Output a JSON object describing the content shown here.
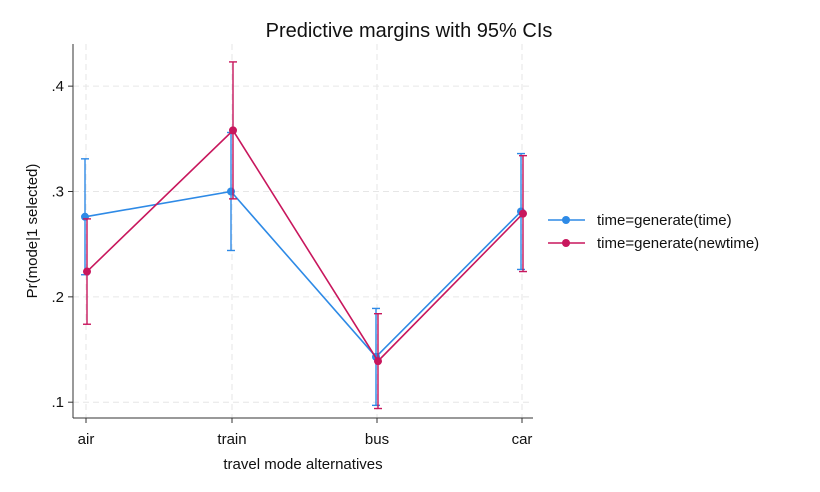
{
  "chart_data": {
    "type": "line",
    "title": "Predictive margins with 95% CIs",
    "xlabel": "travel mode alternatives",
    "ylabel": "Pr(mode|1 selected)",
    "categories": [
      "air",
      "train",
      "bus",
      "car"
    ],
    "yticks": [
      0.1,
      0.2,
      0.3,
      0.4
    ],
    "ytick_labels": [
      ".1",
      ".2",
      ".3",
      ".4"
    ],
    "ylim": [
      0.085,
      0.44
    ],
    "grid": true,
    "legend_position": "right",
    "series": [
      {
        "name": "time=generate(time)",
        "color": "#2e8ae6",
        "values": [
          0.276,
          0.3,
          0.143,
          0.281
        ],
        "ci_low": [
          0.221,
          0.244,
          0.097,
          0.226
        ],
        "ci_high": [
          0.331,
          0.356,
          0.189,
          0.336
        ]
      },
      {
        "name": "time=generate(newtime)",
        "color": "#c8175d",
        "values": [
          0.224,
          0.358,
          0.139,
          0.279
        ],
        "ci_low": [
          0.174,
          0.293,
          0.094,
          0.224
        ],
        "ci_high": [
          0.274,
          0.423,
          0.184,
          0.334
        ]
      }
    ]
  }
}
